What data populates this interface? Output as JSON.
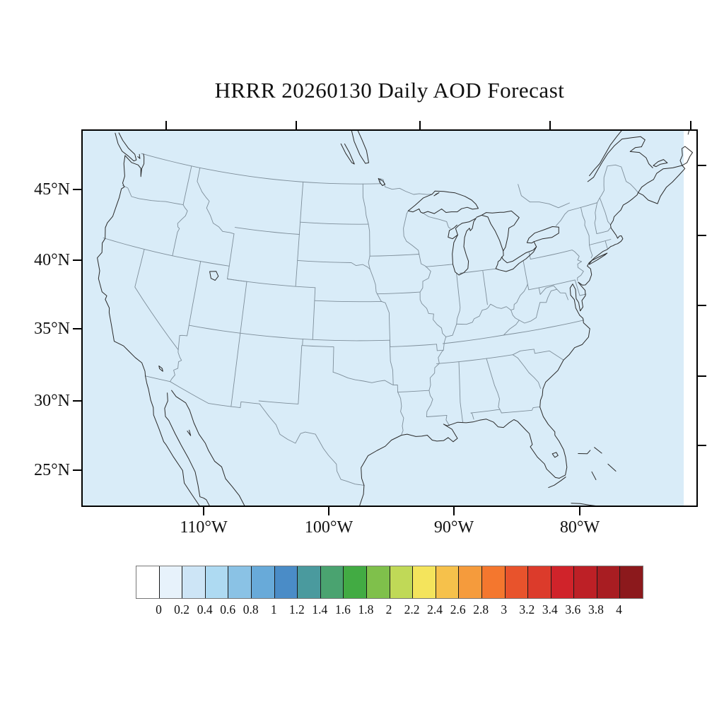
{
  "title": "HRRR 20260130 Daily AOD Forecast",
  "map": {
    "lat_tick_labels": [
      "45°N",
      "40°N",
      "35°N",
      "30°N",
      "25°N"
    ],
    "lon_tick_labels": [
      "110°W",
      "100°W",
      "90°W",
      "80°W"
    ],
    "background_color": "#d9ecf8",
    "outside_strip_color": "#ffffff",
    "coast_color": "#2a2a2a",
    "state_border_color": "#7e8e9a"
  },
  "colorbar": {
    "tick_labels": [
      "0",
      "0.2",
      "0.4",
      "0.6",
      "0.8",
      "1",
      "1.2",
      "1.4",
      "1.6",
      "1.8",
      "2",
      "2.2",
      "2.4",
      "2.6",
      "2.8",
      "3",
      "3.2",
      "3.4",
      "3.6",
      "3.8",
      "4"
    ],
    "cell_colors": [
      "#ffffff",
      "#e7f2fb",
      "#cde5f6",
      "#aedaf2",
      "#8ac2e5",
      "#68aad9",
      "#4a8cc7",
      "#4a9a9e",
      "#4aa370",
      "#42ab43",
      "#7fc04b",
      "#c0d957",
      "#f4e45c",
      "#f6c14b",
      "#f59b3c",
      "#f4772e",
      "#e8532c",
      "#dc3b2b",
      "#d0232a",
      "#bd2026",
      "#a81d22",
      "#8c191c"
    ]
  }
}
